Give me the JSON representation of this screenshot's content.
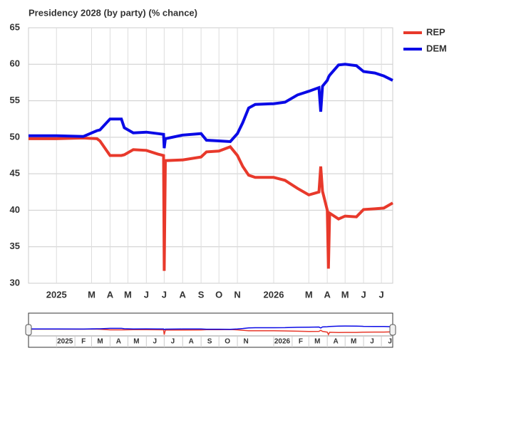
{
  "chart_data": {
    "type": "line",
    "title": "Presidency 2028 (by party) (% chance)",
    "x": [
      "2024-11-15",
      "2025-01-01",
      "2025-02-15",
      "2025-03-10",
      "2025-03-15",
      "2025-04-01",
      "2025-04-20",
      "2025-04-25",
      "2025-05-10",
      "2025-06-01",
      "2025-06-20",
      "2025-06-30",
      "2025-07-01",
      "2025-07-03",
      "2025-08-01",
      "2025-09-01",
      "2025-09-10",
      "2025-10-01",
      "2025-10-20",
      "2025-11-01",
      "2025-11-10",
      "2025-11-20",
      "2025-12-01",
      "2026-01-01",
      "2026-01-20",
      "2026-02-10",
      "2026-03-01",
      "2026-03-18",
      "2026-03-21",
      "2026-03-24",
      "2026-04-01",
      "2026-04-03",
      "2026-04-05",
      "2026-04-20",
      "2026-05-01",
      "2026-05-20",
      "2026-06-01",
      "2026-06-20",
      "2026-07-05",
      "2026-07-20"
    ],
    "series": [
      {
        "name": "REP",
        "color": "#e8392b",
        "values": [
          49.8,
          49.8,
          49.9,
          49.8,
          49.5,
          47.5,
          47.5,
          47.6,
          48.3,
          48.2,
          47.7,
          47.5,
          31.7,
          46.8,
          46.9,
          47.3,
          48.0,
          48.1,
          48.7,
          47.5,
          46.0,
          44.8,
          44.5,
          44.5,
          44.1,
          43.0,
          42.1,
          42.5,
          46.0,
          42.6,
          40.0,
          32.0,
          39.6,
          38.8,
          39.2,
          39.1,
          40.1,
          40.2,
          40.3,
          41.0
        ]
      },
      {
        "name": "DEM",
        "color": "#0a0ae6",
        "values": [
          50.2,
          50.2,
          50.1,
          50.9,
          51.0,
          52.5,
          52.5,
          51.3,
          50.6,
          50.7,
          50.5,
          50.4,
          48.5,
          49.8,
          50.3,
          50.5,
          49.6,
          49.5,
          49.4,
          50.5,
          52.0,
          54.0,
          54.5,
          54.6,
          54.8,
          55.8,
          56.3,
          56.8,
          53.5,
          57.0,
          57.8,
          58.2,
          58.5,
          59.9,
          60.0,
          59.8,
          59.0,
          58.8,
          58.4,
          57.8
        ]
      }
    ],
    "xlim": [
      "2024-11-15",
      "2026-07-20"
    ],
    "xticks": [
      {
        "value": "2025-01-01",
        "label": "2025"
      },
      {
        "value": "2025-03-01",
        "label": "M"
      },
      {
        "value": "2025-04-01",
        "label": "A"
      },
      {
        "value": "2025-05-01",
        "label": "M"
      },
      {
        "value": "2025-06-01",
        "label": "J"
      },
      {
        "value": "2025-07-01",
        "label": "J"
      },
      {
        "value": "2025-08-01",
        "label": "A"
      },
      {
        "value": "2025-09-01",
        "label": "S"
      },
      {
        "value": "2025-10-01",
        "label": "O"
      },
      {
        "value": "2025-11-01",
        "label": "N"
      },
      {
        "value": "2026-01-01",
        "label": "2026"
      },
      {
        "value": "2026-03-01",
        "label": "M"
      },
      {
        "value": "2026-04-01",
        "label": "A"
      },
      {
        "value": "2026-05-01",
        "label": "M"
      },
      {
        "value": "2026-06-01",
        "label": "J"
      },
      {
        "value": "2026-07-01",
        "label": "J"
      }
    ],
    "ylim": [
      30,
      65
    ],
    "yticks": [
      30,
      35,
      40,
      45,
      50,
      55,
      60,
      65
    ],
    "grid": true,
    "legend": "right",
    "navigator_xticks": [
      {
        "value": "2025-01-01",
        "label": "2025"
      },
      {
        "value": "2025-02-01",
        "label": "F"
      },
      {
        "value": "2025-03-01",
        "label": "M"
      },
      {
        "value": "2025-04-01",
        "label": "A"
      },
      {
        "value": "2025-05-01",
        "label": "M"
      },
      {
        "value": "2025-06-01",
        "label": "J"
      },
      {
        "value": "2025-07-01",
        "label": "J"
      },
      {
        "value": "2025-08-01",
        "label": "A"
      },
      {
        "value": "2025-09-01",
        "label": "S"
      },
      {
        "value": "2025-10-01",
        "label": "O"
      },
      {
        "value": "2025-11-01",
        "label": "N"
      },
      {
        "value": "2026-01-01",
        "label": "2026"
      },
      {
        "value": "2026-02-01",
        "label": "F"
      },
      {
        "value": "2026-03-01",
        "label": "M"
      },
      {
        "value": "2026-04-01",
        "label": "A"
      },
      {
        "value": "2026-05-01",
        "label": "M"
      },
      {
        "value": "2026-06-01",
        "label": "J"
      },
      {
        "value": "2026-07-01",
        "label": "J"
      }
    ]
  }
}
